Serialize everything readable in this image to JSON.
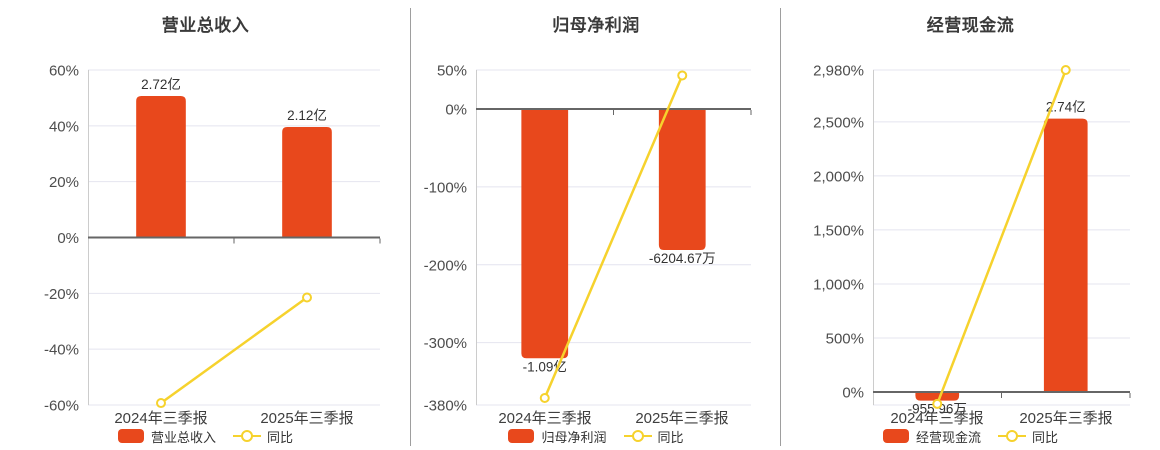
{
  "colors": {
    "background": "#ffffff",
    "bar": "#e8481c",
    "line": "#f6d22d",
    "zero_axis": "#666666",
    "grid": "#e4e4ef",
    "axis_line": "#cccccc",
    "separator": "#9e9e9e",
    "title_text": "#3a3a3a",
    "tick_text": "#4d4d4d",
    "category_text": "#3f3f3f",
    "value_text": "#333333",
    "legend_text": "#333333",
    "marker_fill": "#ffffff"
  },
  "chart_data": [
    {
      "type": "bar",
      "title": "营业总收入",
      "categories": [
        "2024年三季报",
        "2025年三季报"
      ],
      "ylim": [
        -60,
        60
      ],
      "grid": true,
      "legend_position": "bottom",
      "yticks": [
        {
          "label": "60%",
          "value": 60
        },
        {
          "label": "40%",
          "value": 40
        },
        {
          "label": "20%",
          "value": 20
        },
        {
          "label": "0%",
          "value": 0
        },
        {
          "label": "-20%",
          "value": -20
        },
        {
          "label": "-40%",
          "value": -40
        },
        {
          "label": "-60%",
          "value": -60
        }
      ],
      "series": [
        {
          "type": "bar",
          "name": "营业总收入",
          "value_labels": [
            "2.72亿",
            "2.12亿"
          ],
          "axis_pct": [
            50.7,
            39.6
          ]
        },
        {
          "type": "line",
          "name": "同比",
          "axis_pct": [
            -59.3,
            -21.5
          ]
        }
      ]
    },
    {
      "type": "bar",
      "title": "归母净利润",
      "categories": [
        "2024年三季报",
        "2025年三季报"
      ],
      "ylim": [
        -380,
        50
      ],
      "grid": true,
      "legend_position": "bottom",
      "yticks": [
        {
          "label": "50%",
          "value": 50
        },
        {
          "label": "0%",
          "value": 0
        },
        {
          "label": "-100%",
          "value": -100
        },
        {
          "label": "-200%",
          "value": -200
        },
        {
          "label": "-300%",
          "value": -300
        },
        {
          "label": "-380%",
          "value": -380
        }
      ],
      "series": [
        {
          "type": "bar",
          "name": "归母净利润",
          "value_labels": [
            "-1.09亿",
            "-6204.67万"
          ],
          "axis_pct": [
            -320,
            -181
          ]
        },
        {
          "type": "line",
          "name": "同比",
          "axis_pct": [
            -371,
            43
          ]
        }
      ]
    },
    {
      "type": "bar",
      "title": "经营现金流",
      "categories": [
        "2024年三季报",
        "2025年三季报"
      ],
      "ylim": [
        -120,
        2980
      ],
      "grid": true,
      "legend_position": "bottom",
      "yticks": [
        {
          "label": "2,980%",
          "value": 2980
        },
        {
          "label": "2,500%",
          "value": 2500
        },
        {
          "label": "2,000%",
          "value": 2000
        },
        {
          "label": "1,500%",
          "value": 1500
        },
        {
          "label": "1,000%",
          "value": 1000
        },
        {
          "label": "500%",
          "value": 500
        },
        {
          "label": "0%",
          "value": 0
        }
      ],
      "series": [
        {
          "type": "bar",
          "name": "经营现金流",
          "value_labels": [
            "-955.96万",
            "2.74亿"
          ],
          "axis_pct": [
            -80,
            2530
          ]
        },
        {
          "type": "line",
          "name": "同比",
          "axis_pct": [
            -110,
            2980
          ]
        }
      ]
    }
  ]
}
